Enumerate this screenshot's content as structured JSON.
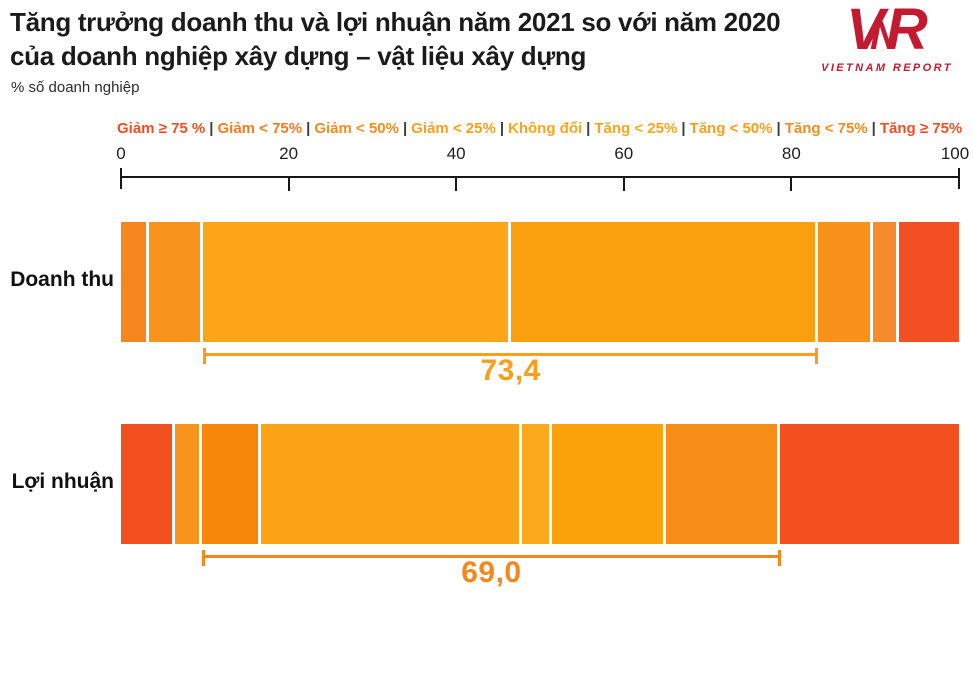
{
  "header": {
    "title_lines": [
      "Tăng trưởng doanh thu và lợi nhuận năm 2021 so với năm 2020",
      "của doanh nghiệp xây dựng – vật liệu xây dựng"
    ],
    "subtitle": "% số doanh nghiệp",
    "logo": {
      "letters": [
        "V",
        "N",
        "R"
      ],
      "caption": "VIETNAM REPORT",
      "color": "#C21B31"
    }
  },
  "chart_data": {
    "type": "bar",
    "orientation": "horizontal-stacked",
    "title": "Tăng trưởng doanh thu và lợi nhuận năm 2021 so với năm 2020 của doanh nghiệp xây dựng – vật liệu xây dựng",
    "unit_label": "% số doanh nghiệp",
    "axis": {
      "min": 0,
      "max": 100,
      "ticks": [
        0,
        20,
        40,
        60,
        80,
        100
      ]
    },
    "legend_separator": "|",
    "legend": [
      {
        "label": "Giảm ≥ 75 %",
        "color": "#EF4E23"
      },
      {
        "label": "Giảm < 75%",
        "color": "#F47B20"
      },
      {
        "label": "Giảm < 50%",
        "color": "#F68C1E"
      },
      {
        "label": "Giảm < 25%",
        "color": "#F9A01B"
      },
      {
        "label": "Không đổi",
        "color": "#FAA61A"
      },
      {
        "label": "Tăng < 25%",
        "color": "#FAA61A"
      },
      {
        "label": "Tăng < 50%",
        "color": "#F9A01B"
      },
      {
        "label": "Tăng < 75%",
        "color": "#F68C1E"
      },
      {
        "label": "Tăng ≥ 75%",
        "color": "#EF4E23"
      }
    ],
    "bars": [
      {
        "label": "Doanh thu",
        "segments": [
          {
            "value": 3.3,
            "color": "#F6871F"
          },
          {
            "value": 6.5,
            "color": "#F8941C"
          },
          {
            "value": 36.7,
            "color": "#FBA517"
          },
          {
            "value": 36.7,
            "color": "#FAA00E"
          },
          {
            "value": 6.5,
            "color": "#F9921B"
          },
          {
            "value": 3.2,
            "color": "#F68B2E"
          },
          {
            "value": 7.1,
            "color": "#F25022"
          }
        ],
        "bracket": {
          "start": 9.8,
          "end": 83.2,
          "label": "73,4",
          "color": "#F9A01B"
        }
      },
      {
        "label": "Lợi nhuận",
        "segments": [
          {
            "value": 6.5,
            "color": "#F3501F"
          },
          {
            "value": 3.2,
            "color": "#F8941E"
          },
          {
            "value": 7.0,
            "color": "#F6870B"
          },
          {
            "value": 31.2,
            "color": "#FBA415"
          },
          {
            "value": 3.5,
            "color": "#FAA91C"
          },
          {
            "value": 13.6,
            "color": "#FBA20B"
          },
          {
            "value": 13.7,
            "color": "#F78D16"
          },
          {
            "value": 21.3,
            "color": "#F3501F"
          }
        ],
        "bracket": {
          "start": 9.7,
          "end": 78.7,
          "label": "69,0",
          "color": "#F6871D"
        }
      }
    ]
  }
}
